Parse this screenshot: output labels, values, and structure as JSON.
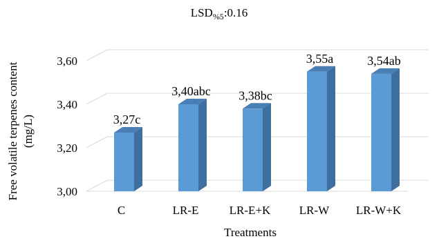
{
  "chart_data": {
    "type": "bar",
    "title_main": "LSD",
    "title_sub": "%5",
    "title_value": ":0.16",
    "xlabel": "Treatments",
    "ylabel_line1": "Free volatile terpenes content",
    "ylabel_line2": "(mg/L)",
    "categories": [
      "C",
      "LR-E",
      "LR-E+K",
      "LR-W",
      "LR-W+K"
    ],
    "values": [
      3.27,
      3.4,
      3.38,
      3.55,
      3.54
    ],
    "data_labels": [
      "3,27c",
      "3,40abc",
      "3,38bc",
      "3,55a",
      "3,54ab"
    ],
    "ylim": [
      3.0,
      3.6
    ],
    "yticks": [
      3.0,
      3.2,
      3.4,
      3.6
    ],
    "ytick_labels": [
      "3,00",
      "3,20",
      "3,40",
      "3,60"
    ],
    "grid": true,
    "style": "3d-column",
    "colors": {
      "bar_front": "#5b9bd5",
      "bar_side": "#3e6f9e",
      "bar_top": "#4a7fb5",
      "gridline": "#d9d9d9",
      "text": "#000000"
    }
  }
}
